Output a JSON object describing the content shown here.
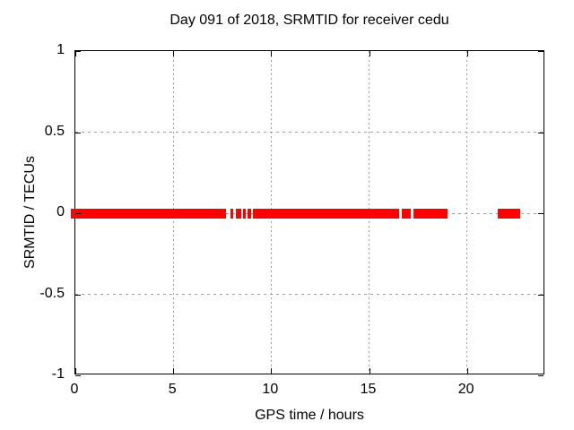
{
  "window": {
    "background": "#ffffff"
  },
  "chart_data": {
    "type": "scatter",
    "title": "Day 091 of 2018, SRMTID for receiver cedu",
    "xlabel": "GPS time / hours",
    "ylabel": "SRMTID / TECUs",
    "xlim": [
      0,
      24
    ],
    "ylim": [
      -1,
      1
    ],
    "xticks": {
      "values": [
        0,
        5,
        10,
        15,
        20
      ],
      "labels": [
        "0",
        "5",
        "10",
        "15",
        "20"
      ]
    },
    "yticks": {
      "values": [
        1,
        0.5,
        0,
        -0.5,
        -1
      ],
      "labels": [
        "1",
        "0.5",
        "0",
        "-0.5",
        "-1"
      ]
    },
    "grid": "dotted",
    "grid_color": "#9c9c9c",
    "axis_color": "#000000",
    "legend": "none",
    "series": [
      {
        "name": "SRMTID",
        "render": "points",
        "marker": "filled-square",
        "color": "#ff0000",
        "y_value": 0,
        "x_segments_hours": [
          [
            0.0,
            7.7
          ],
          [
            7.93,
            8.06
          ],
          [
            8.2,
            8.47
          ],
          [
            8.56,
            8.69
          ],
          [
            8.8,
            8.97
          ],
          [
            9.07,
            16.54
          ],
          [
            16.67,
            17.13
          ],
          [
            17.27,
            19.0
          ],
          [
            21.55,
            22.7
          ]
        ]
      }
    ]
  }
}
